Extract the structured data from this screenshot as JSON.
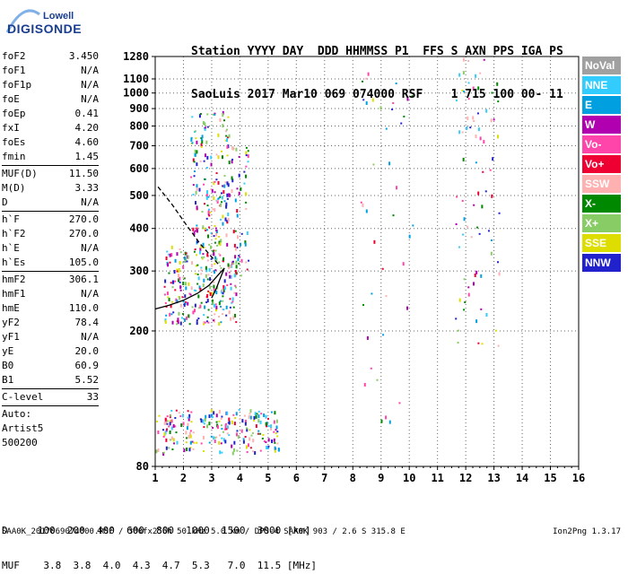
{
  "logo": {
    "top": "Lowell",
    "main": "DIGISONDE"
  },
  "header": {
    "line1": "Station YYYY DAY  DDD HHMMSS P1  FFS S AXN PPS IGA PS",
    "line2": "SaoLuis 2017 Mar10 069 074000 RSF    1 715 100 00- 11"
  },
  "params_groups": [
    [
      [
        "foF2",
        "3.450"
      ],
      [
        "foF1",
        "N/A"
      ],
      [
        "foF1p",
        "N/A"
      ],
      [
        "foE",
        "N/A"
      ],
      [
        "foEp",
        "0.41"
      ],
      [
        "fxI",
        "4.20"
      ],
      [
        "foEs",
        "4.60"
      ],
      [
        "fmin",
        "1.45"
      ]
    ],
    [
      [
        "MUF(D)",
        "11.50"
      ],
      [
        "M(D)",
        "3.33"
      ],
      [
        "D",
        "N/A"
      ]
    ],
    [
      [
        "h`F",
        "270.0"
      ],
      [
        "h`F2",
        "270.0"
      ],
      [
        "h`E",
        "N/A"
      ],
      [
        "h`Es",
        "105.0"
      ]
    ],
    [
      [
        "hmF2",
        "306.1"
      ],
      [
        "hmF1",
        "N/A"
      ],
      [
        "hmE",
        "110.0"
      ],
      [
        "yF2",
        "78.4"
      ],
      [
        "yF1",
        "N/A"
      ],
      [
        "yE",
        "20.0"
      ],
      [
        "B0",
        "60.9"
      ],
      [
        "B1",
        "5.52"
      ]
    ],
    [
      [
        "C-level",
        "33"
      ]
    ]
  ],
  "auto": [
    "Auto:",
    "Artist5",
    "500200"
  ],
  "legend": [
    {
      "label": "NoVal",
      "color": "#a0a0a0"
    },
    {
      "label": "NNE",
      "color": "#33ccff"
    },
    {
      "label": "E",
      "color": "#00a0e0"
    },
    {
      "label": "W",
      "color": "#b000b0"
    },
    {
      "label": "Vo-",
      "color": "#ff44aa"
    },
    {
      "label": "Vo+",
      "color": "#ee0033"
    },
    {
      "label": "SSW",
      "color": "#ffb0b0"
    },
    {
      "label": "X-",
      "color": "#008800"
    },
    {
      "label": "X+",
      "color": "#88cc66"
    },
    {
      "label": "SSE",
      "color": "#dddd00"
    },
    {
      "label": "NNW",
      "color": "#2222cc"
    }
  ],
  "footer": {
    "table_row1": "D     100  200  400  600  800  1000  1500  3000 [km]",
    "table_row2": "MUF    3.8  3.8  4.0  4.3  4.7  5.3   7.0  11.5 [MHz]",
    "info": "SAA0K_2017069074000.RSF / 300fx256h 50 kHz 5.0 km / DPS-4 SAA0K 903 / 2.6 S 315.8 E",
    "version": "Ion2Png 1.3.17"
  },
  "chart_data": {
    "type": "scatter",
    "title": "",
    "xlabel": "",
    "ylabel": "",
    "xlim": [
      1,
      16
    ],
    "ylim": [
      80,
      1280
    ],
    "x_ticks": [
      1,
      2,
      3,
      4,
      5,
      6,
      7,
      8,
      9,
      10,
      11,
      12,
      13,
      14,
      15,
      16
    ],
    "y_ticks": [
      80,
      200,
      300,
      400,
      500,
      600,
      700,
      800,
      900,
      1000,
      1100,
      1280
    ],
    "y_scale": "log",
    "grid": true,
    "traces": [
      {
        "kind": "line",
        "style": "solid",
        "x": [
          1.0,
          1.5,
          2.0,
          2.5,
          2.9,
          3.2,
          3.45
        ],
        "y": [
          232,
          238,
          246,
          258,
          272,
          290,
          306
        ]
      },
      {
        "kind": "line",
        "style": "dashed",
        "x": [
          1.1,
          1.6,
          2.1,
          2.6,
          3.0,
          3.3
        ],
        "y": [
          530,
          470,
          410,
          360,
          330,
          310
        ]
      },
      {
        "kind": "line",
        "style": "solid",
        "x": [
          3.0,
          3.15,
          3.3,
          3.45
        ],
        "y": [
          250,
          265,
          285,
          306
        ]
      }
    ],
    "clusters": [
      {
        "name": "F-trace main",
        "x_range": [
          1.3,
          3.9
        ],
        "y_range": [
          210,
          360
        ],
        "density": 260
      },
      {
        "name": "F-trace spread",
        "x_range": [
          2.2,
          3.6
        ],
        "y_range": [
          360,
          900
        ],
        "density": 160
      },
      {
        "name": "Es layer",
        "x_range": [
          1.0,
          5.4
        ],
        "y_range": [
          88,
          118
        ],
        "density": 220
      },
      {
        "name": "F high",
        "x_range": [
          3.5,
          4.3
        ],
        "y_range": [
          280,
          720
        ],
        "density": 60
      },
      {
        "name": "second-hop",
        "x_range": [
          11.6,
          13.2
        ],
        "y_range": [
          180,
          1280
        ],
        "density": 80
      },
      {
        "name": "mid-scatter",
        "x_range": [
          8.2,
          10.2
        ],
        "y_range": [
          100,
          1280
        ],
        "density": 40
      }
    ]
  }
}
